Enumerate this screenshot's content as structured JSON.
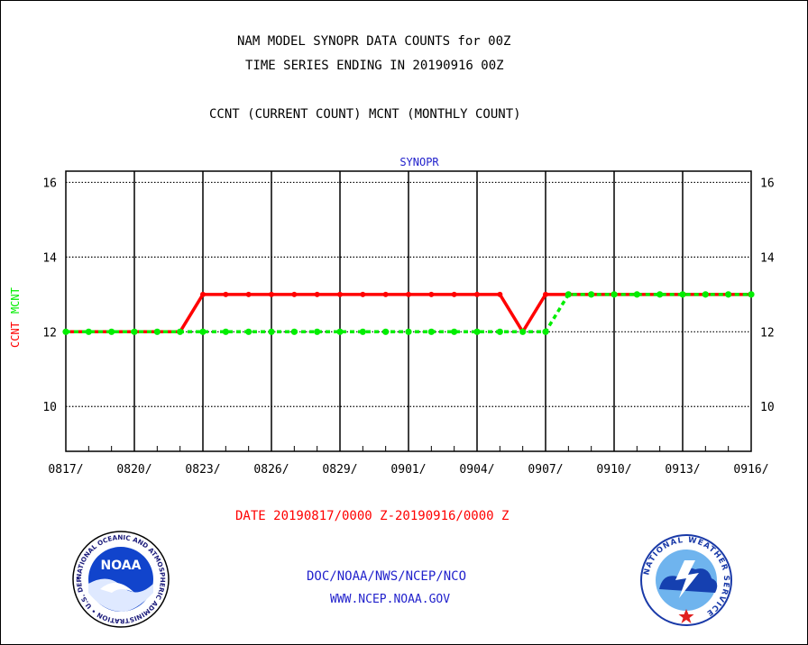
{
  "header": {
    "title_line1": "NAM MODEL SYNOPR DATA COUNTS for 00Z",
    "title_line2": "TIME SERIES ENDING IN 20190916 00Z",
    "subtitle": "CCNT (CURRENT COUNT) MCNT (MONTHLY COUNT)"
  },
  "footer": {
    "date_range": "DATE 20190817/0000 Z-20190916/0000 Z",
    "org": "DOC/NOAA/NWS/NCEP/NCO",
    "url": "WWW.NCEP.NOAA.GOV"
  },
  "logos": {
    "noaa_text": "NOAA",
    "noaa_ring": "NATIONAL OCEANIC AND ATMOSPHERIC ADMINISTRATION • U.S. DEPARTMENT OF COMMERCE",
    "nws_ring": "NATIONAL WEATHER SERVICE"
  },
  "colors": {
    "ccnt": "#ff0000",
    "mcnt": "#00ee00",
    "panel_title": "#2222cc",
    "date_text": "#ff0000",
    "footer_text": "#2222cc"
  },
  "chart_data": {
    "type": "line",
    "panel_title": "SYNOPR",
    "ylabel_ccnt": "CCNT",
    "ylabel_mcnt": "MCNT",
    "ylim": [
      8.8,
      16.3
    ],
    "yticks": [
      10,
      12,
      14,
      16
    ],
    "grid": true,
    "xtick_labels": [
      "0817/",
      "0820/",
      "0823/",
      "0826/",
      "0829/",
      "0901/",
      "0904/",
      "0907/",
      "0910/",
      "0913/",
      "0916/"
    ],
    "x": [
      "0817",
      "0818",
      "0819",
      "0820",
      "0821",
      "0822",
      "0823",
      "0824",
      "0825",
      "0826",
      "0827",
      "0828",
      "0829",
      "0830",
      "0831",
      "0901",
      "0902",
      "0903",
      "0904",
      "0905",
      "0906",
      "0907",
      "0908",
      "0909",
      "0910",
      "0911",
      "0912",
      "0913",
      "0914",
      "0915",
      "0916"
    ],
    "series": [
      {
        "name": "CCNT",
        "values": [
          12,
          12,
          12,
          12,
          12,
          12,
          13,
          13,
          13,
          13,
          13,
          13,
          13,
          13,
          13,
          13,
          13,
          13,
          13,
          13,
          12,
          13,
          13,
          13,
          13,
          13,
          13,
          13,
          13,
          13,
          13
        ]
      },
      {
        "name": "MCNT",
        "values": [
          12,
          12,
          12,
          12,
          12,
          12,
          12,
          12,
          12,
          12,
          12,
          12,
          12,
          12,
          12,
          12,
          12,
          12,
          12,
          12,
          12,
          12,
          13,
          13,
          13,
          13,
          13,
          13,
          13,
          13,
          13
        ]
      }
    ]
  }
}
